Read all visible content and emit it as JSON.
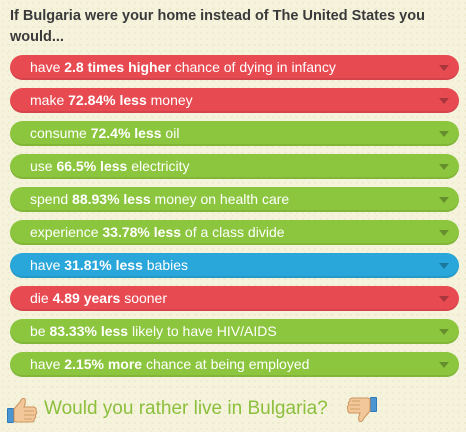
{
  "heading": "If Bulgaria were your home instead of The United States you would...",
  "rows": [
    {
      "pre": "have ",
      "bold": "2.8 times higher",
      "post": " chance of dying in infancy",
      "color": "red"
    },
    {
      "pre": "make ",
      "bold": "72.84% less",
      "post": " money",
      "color": "red"
    },
    {
      "pre": "consume ",
      "bold": "72.4% less",
      "post": " oil",
      "color": "green"
    },
    {
      "pre": "use ",
      "bold": "66.5% less",
      "post": " electricity",
      "color": "green"
    },
    {
      "pre": "spend ",
      "bold": "88.93% less",
      "post": " money on health care",
      "color": "green"
    },
    {
      "pre": "experience ",
      "bold": "33.78% less",
      "post": " of a class divide",
      "color": "green"
    },
    {
      "pre": "have ",
      "bold": "31.81% less",
      "post": " babies",
      "color": "blue"
    },
    {
      "pre": "die ",
      "bold": "4.89 years",
      "post": " sooner",
      "color": "red"
    },
    {
      "pre": "be ",
      "bold": "83.33% less",
      "post": " likely to have HIV/AIDS",
      "color": "green"
    },
    {
      "pre": "have ",
      "bold": "2.15% more",
      "post": " chance at being employed",
      "color": "green"
    }
  ],
  "footer": {
    "question": "Would you rather live in Bulgaria?",
    "thumb_up_icon": "thumbs-up-icon",
    "thumb_down_icon": "thumbs-down-icon"
  },
  "colors": {
    "red": "#e84a52",
    "green": "#8cc63e",
    "blue": "#29a6da",
    "question_text": "#8cbf3c",
    "background": "#f6f3dd"
  }
}
